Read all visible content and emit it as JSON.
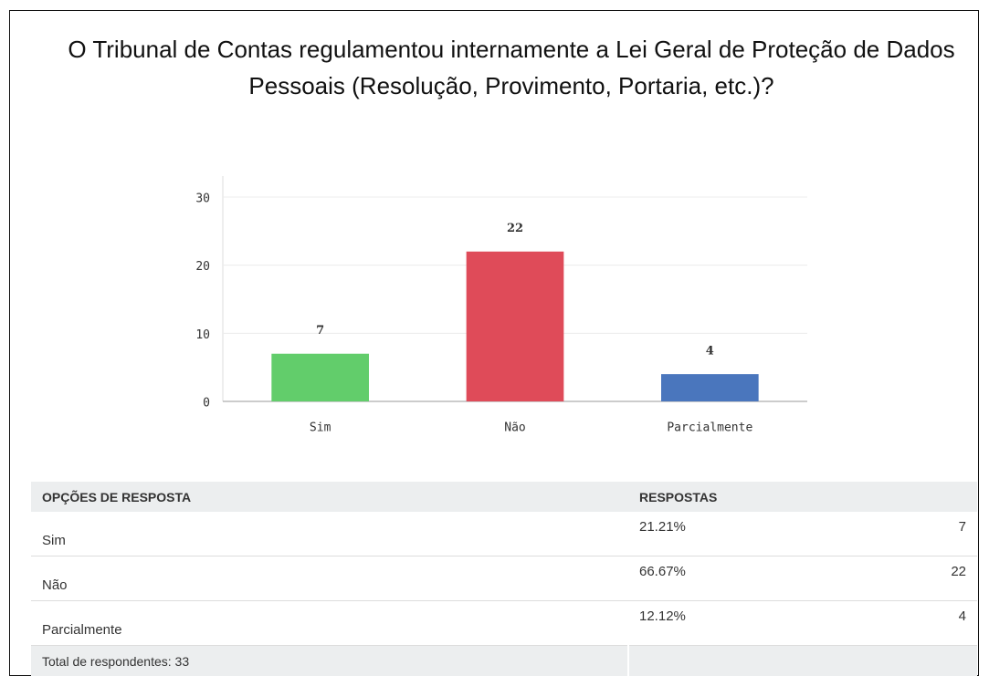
{
  "chart_data": {
    "type": "bar",
    "title": "O Tribunal de Contas regulamentou internamente a Lei Geral de Proteção de Dados Pessoais (Resolução, Provimento, Portaria, etc.)?",
    "categories": [
      "Sim",
      "Não",
      "Parcialmente"
    ],
    "values": [
      7,
      22,
      4
    ],
    "colors": [
      "#62cd6b",
      "#df4b59",
      "#4a76bd"
    ],
    "ylim": [
      0,
      30
    ],
    "yticks": [
      0,
      10,
      20,
      30
    ],
    "grid": true
  },
  "table": {
    "headers": [
      "OPÇÕES DE RESPOSTA",
      "RESPOSTAS"
    ],
    "rows": [
      [
        "Sim",
        "21.21%",
        "7"
      ],
      [
        "Não",
        "66.67%",
        "22"
      ],
      [
        "Parcialmente",
        "12.12%",
        "4"
      ]
    ],
    "footer": "Total de respondentes: 33"
  }
}
